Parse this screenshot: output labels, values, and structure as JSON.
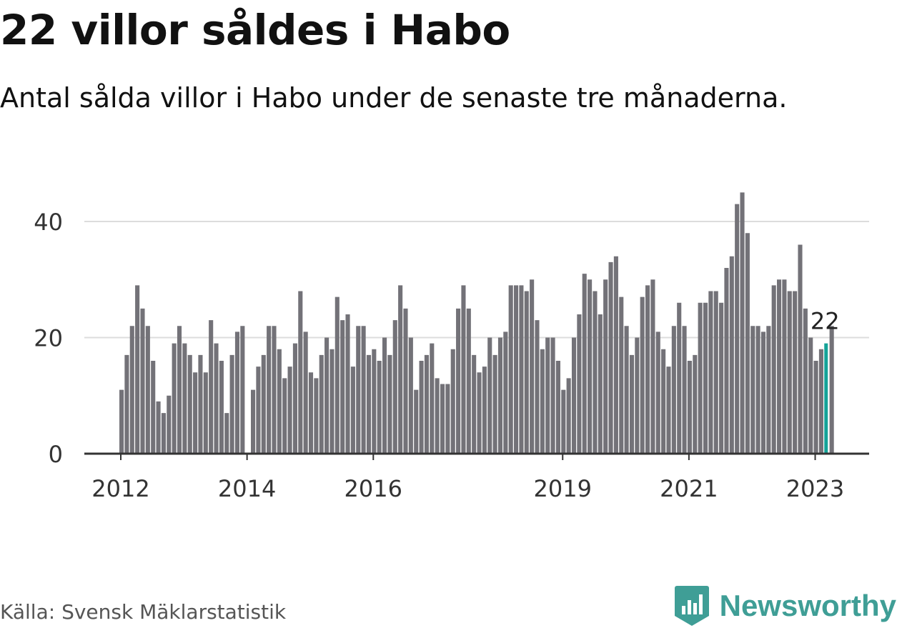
{
  "header": {
    "title": "22 villor såldes i Habo",
    "subtitle": "Antal sålda villor i Habo under de senaste tre månaderna."
  },
  "footer": {
    "source": "Källa: Svensk Mäklarstatistik",
    "brand": "Newsworthy",
    "brand_icon": "bar-chart-badge-icon"
  },
  "colors": {
    "bar": "#737278",
    "highlight": "#14a398",
    "grid": "#dcdcdc",
    "axis": "#333333",
    "brand": "#3f9e96"
  },
  "chart_data": {
    "type": "bar",
    "title": "22 villor såldes i Habo",
    "subtitle": "Antal sålda villor i Habo under de senaste tre månaderna.",
    "xlabel": "",
    "ylabel": "",
    "ylim": [
      0,
      48
    ],
    "y_ticks": [
      0,
      20,
      40
    ],
    "x_ticks": [
      {
        "label": "2012",
        "index": 0
      },
      {
        "label": "2014",
        "index": 24
      },
      {
        "label": "2016",
        "index": 48
      },
      {
        "label": "2019",
        "index": 84
      },
      {
        "label": "2021",
        "index": 108
      },
      {
        "label": "2023",
        "index": 132
      }
    ],
    "grid": true,
    "highlight_index": 134,
    "highlight_label": "22",
    "values": [
      11,
      17,
      22,
      29,
      25,
      22,
      16,
      9,
      7,
      10,
      19,
      22,
      19,
      17,
      14,
      17,
      14,
      23,
      19,
      16,
      7,
      17,
      21,
      22,
      0,
      11,
      15,
      17,
      22,
      22,
      18,
      13,
      15,
      19,
      28,
      21,
      14,
      13,
      17,
      20,
      18,
      27,
      23,
      24,
      15,
      22,
      22,
      17,
      18,
      16,
      20,
      17,
      23,
      29,
      25,
      20,
      11,
      16,
      17,
      19,
      13,
      12,
      12,
      18,
      25,
      29,
      25,
      17,
      14,
      15,
      20,
      17,
      20,
      21,
      29,
      29,
      29,
      28,
      30,
      23,
      18,
      20,
      20,
      16,
      11,
      13,
      20,
      24,
      31,
      30,
      28,
      24,
      30,
      33,
      34,
      27,
      22,
      17,
      20,
      27,
      29,
      30,
      21,
      18,
      15,
      22,
      26,
      22,
      16,
      17,
      26,
      26,
      28,
      28,
      26,
      32,
      34,
      43,
      45,
      38,
      22,
      22,
      21,
      22,
      29,
      30,
      30,
      28,
      28,
      36,
      25,
      20,
      16,
      18,
      19,
      22
    ]
  }
}
